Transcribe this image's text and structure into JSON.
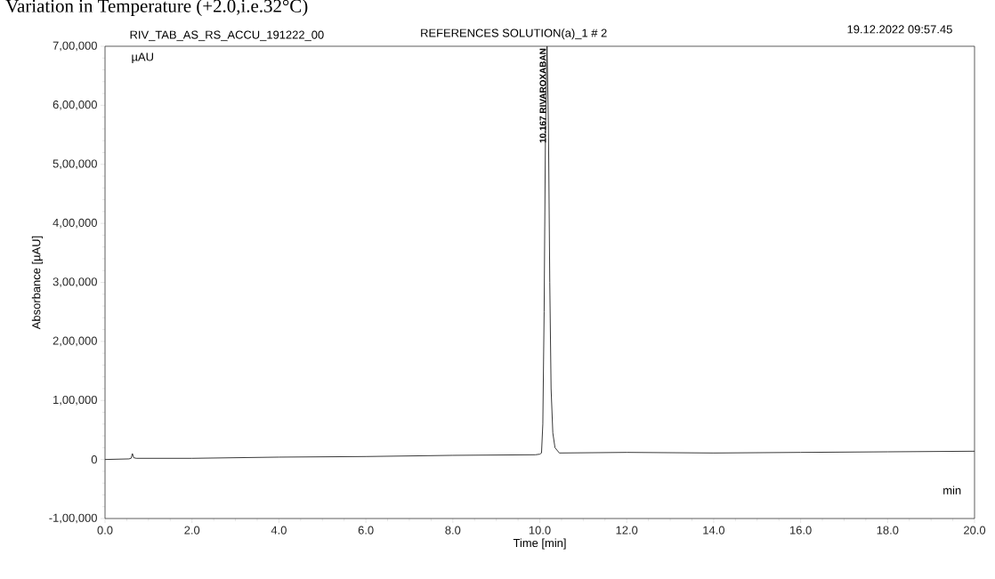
{
  "chart_data": {
    "type": "line",
    "title": "Variation in Temperature (+2.0,i.e.32°C)",
    "xlabel": "Time [min]",
    "ylabel": "Absorbance [µAU]",
    "x": [
      0,
      0.55,
      0.6,
      0.63,
      0.66,
      0.72,
      2,
      4,
      6,
      8,
      9.9,
      10.0,
      10.04,
      10.07,
      10.1,
      10.13,
      10.167,
      10.2,
      10.23,
      10.26,
      10.3,
      10.35,
      10.45,
      12,
      14,
      16,
      18,
      20
    ],
    "values": [
      0,
      1000,
      2000,
      10000,
      3000,
      2000,
      2000,
      4000,
      5000,
      7000,
      8000,
      9000,
      11000,
      60000,
      250000,
      550000,
      700000,
      560000,
      300000,
      120000,
      45000,
      20000,
      11000,
      12000,
      11000,
      12000,
      13000,
      14000
    ],
    "color": "#222222",
    "xlim": [
      0,
      20
    ],
    "ylim": [
      -100000,
      700000
    ],
    "xticks": [
      {
        "value": 0,
        "label": "0.0"
      },
      {
        "value": 2,
        "label": "2.0"
      },
      {
        "value": 4,
        "label": "4.0"
      },
      {
        "value": 6,
        "label": "6.0"
      },
      {
        "value": 8,
        "label": "8.0"
      },
      {
        "value": 10,
        "label": "10.0"
      },
      {
        "value": 12,
        "label": "12.0"
      },
      {
        "value": 14,
        "label": "14.0"
      },
      {
        "value": 16,
        "label": "16.0"
      },
      {
        "value": 18,
        "label": "18.0"
      },
      {
        "value": 20,
        "label": "20.0"
      }
    ],
    "yticks": [
      {
        "value": -100000,
        "label": "-1,00,000"
      },
      0,
      {
        "value": 100000,
        "label": "1,00,000"
      },
      {
        "value": 200000,
        "label": "2,00,000"
      },
      {
        "value": 300000,
        "label": "3,00,000"
      },
      {
        "value": 400000,
        "label": "4,00,000"
      },
      {
        "value": 500000,
        "label": "5,00,000"
      },
      {
        "value": 600000,
        "label": "6,00,000"
      },
      {
        "value": 700000,
        "label": "7,00,000"
      }
    ],
    "annotations": [
      "RIV_TAB_AS_RS_ACCU_191222_00",
      "REFERENCES SOLUTION(a)_1 # 2",
      "19.12.2022 09:57.45",
      "µAU",
      "min",
      {
        "text": "10.167 RIVAROXABAN",
        "x": 10.167,
        "y": 700000
      }
    ]
  }
}
